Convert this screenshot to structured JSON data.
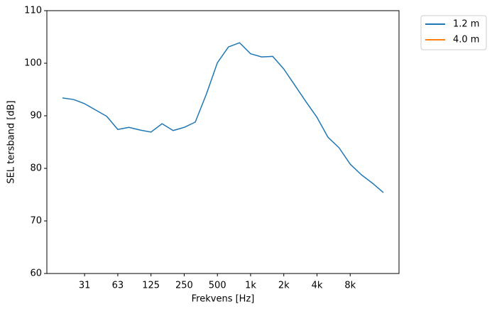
{
  "chart_data": {
    "type": "line",
    "xlabel": "Frekvens [Hz]",
    "ylabel": "SEL tersband [dB]",
    "categories": [
      null,
      null,
      "31",
      null,
      null,
      "63",
      null,
      null,
      "125",
      null,
      null,
      "250",
      null,
      null,
      "500",
      null,
      null,
      "1k",
      null,
      null,
      "2k",
      null,
      null,
      "4k",
      null,
      null,
      "8k",
      null,
      null,
      null
    ],
    "series": [
      {
        "name": "1.2 m",
        "color": "#1f77b4",
        "values": [
          93.4,
          93.1,
          92.3,
          91.1,
          89.9,
          87.4,
          87.8,
          87.3,
          86.9,
          88.5,
          87.2,
          87.8,
          88.8,
          94.1,
          100.1,
          103.1,
          103.9,
          101.8,
          101.2,
          101.3,
          98.9,
          95.8,
          92.7,
          89.7,
          85.9,
          83.9,
          80.8,
          78.8,
          77.2,
          75.4
        ]
      },
      {
        "name": "4.0 m",
        "color": "#ff7f0e",
        "values": [
          null,
          null,
          null,
          null,
          null,
          null,
          null,
          null,
          null,
          null,
          null,
          null,
          null,
          null,
          null,
          null,
          null,
          null,
          null,
          null,
          null,
          null,
          null,
          null,
          null,
          null,
          null,
          null,
          null,
          null
        ]
      }
    ],
    "ylim": [
      60,
      110
    ],
    "yticks": [
      60,
      70,
      80,
      90,
      100,
      110
    ],
    "grid": false,
    "legend": "outside upper right"
  }
}
